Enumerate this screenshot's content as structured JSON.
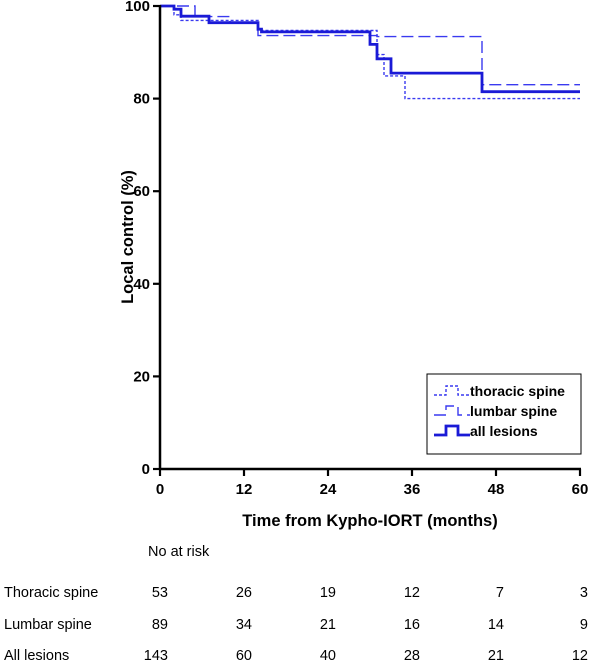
{
  "chart_data": {
    "type": "line",
    "step": true,
    "xlabel": "Time from Kypho-IORT (months)",
    "ylabel": "Local control (%)",
    "xlim": [
      0,
      60
    ],
    "ylim": [
      0,
      100
    ],
    "xticks": [
      0,
      12,
      24,
      36,
      48,
      60
    ],
    "yticks": [
      0,
      20,
      40,
      60,
      80,
      100
    ],
    "grid": false,
    "legend_position": "bottom-right",
    "series": [
      {
        "name": "thoracic spine",
        "color": "#3a3af0",
        "dash": "short-dash",
        "points": [
          [
            0,
            100
          ],
          [
            2,
            100
          ],
          [
            2,
            98.1
          ],
          [
            3,
            98.1
          ],
          [
            3,
            96.9
          ],
          [
            14,
            96.9
          ],
          [
            14,
            94.7
          ],
          [
            31,
            94.7
          ],
          [
            31,
            89.5
          ],
          [
            32,
            89.5
          ],
          [
            32,
            84.9
          ],
          [
            35,
            84.9
          ],
          [
            35,
            80.0
          ],
          [
            60,
            80.0
          ]
        ]
      },
      {
        "name": "lumbar spine",
        "color": "#3a3af0",
        "dash": "long-dash",
        "points": [
          [
            0,
            100
          ],
          [
            5,
            100
          ],
          [
            5,
            97.7
          ],
          [
            10,
            97.7
          ],
          [
            10,
            96.5
          ],
          [
            14,
            96.5
          ],
          [
            14,
            93.6
          ],
          [
            31,
            93.6
          ],
          [
            31,
            93.4
          ],
          [
            46,
            93.4
          ],
          [
            46,
            83.0
          ],
          [
            60,
            83.0
          ]
        ]
      },
      {
        "name": "all lesions",
        "color": "#1a1ad6",
        "dash": "solid",
        "points": [
          [
            0,
            100
          ],
          [
            2,
            100
          ],
          [
            2,
            99.3
          ],
          [
            3,
            99.3
          ],
          [
            3,
            97.8
          ],
          [
            7,
            97.8
          ],
          [
            7,
            96.4
          ],
          [
            14,
            96.4
          ],
          [
            14,
            95.0
          ],
          [
            14.5,
            95.0
          ],
          [
            14.5,
            94.4
          ],
          [
            30,
            94.4
          ],
          [
            30,
            91.7
          ],
          [
            31,
            91.7
          ],
          [
            31,
            88.6
          ],
          [
            33,
            88.6
          ],
          [
            33,
            85.5
          ],
          [
            46,
            85.5
          ],
          [
            46,
            81.5
          ],
          [
            60,
            81.5
          ]
        ]
      }
    ]
  },
  "risk_table": {
    "header": "No at risk",
    "rows": [
      {
        "label": "Thoracic spine",
        "values": [
          "53",
          "26",
          "19",
          "12",
          "7",
          "3"
        ]
      },
      {
        "label": "Lumbar spine",
        "values": [
          "89",
          "34",
          "21",
          "16",
          "14",
          "9"
        ]
      },
      {
        "label": "All lesions",
        "values": [
          "143",
          "60",
          "40",
          "28",
          "21",
          "12"
        ]
      }
    ]
  }
}
